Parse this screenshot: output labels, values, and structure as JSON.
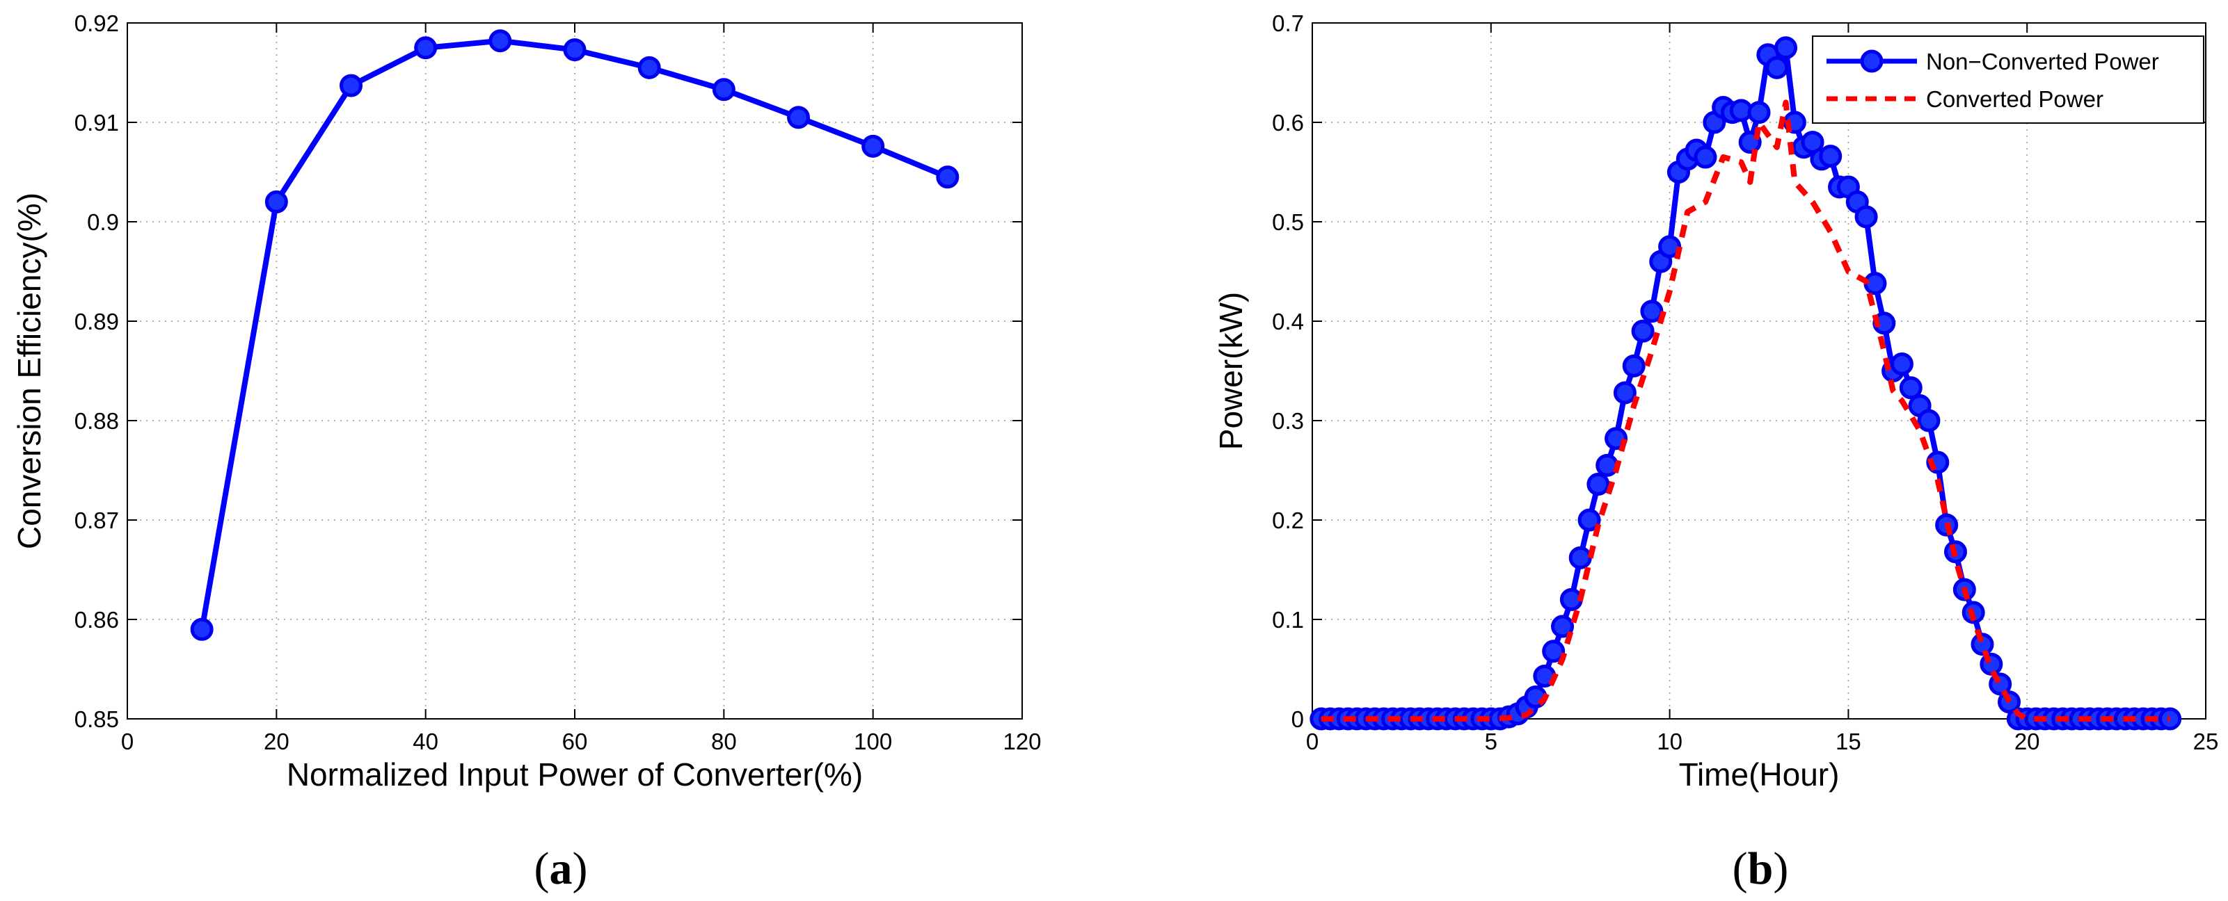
{
  "chart_data": [
    {
      "type": "line",
      "caption": {
        "open": "(",
        "letter": "a",
        "close": ")"
      },
      "xlabel": "Normalized Input Power of Converter(%)",
      "ylabel": "Conversion Efficiency(%)",
      "xlim": [
        0,
        120
      ],
      "ylim": [
        0.85,
        0.92
      ],
      "xticks": [
        0,
        20,
        40,
        60,
        80,
        100,
        120
      ],
      "yticks": [
        0.85,
        0.86,
        0.87,
        0.88,
        0.89,
        0.9,
        0.91,
        0.92
      ],
      "xtick_labels": [
        "0",
        "20",
        "40",
        "60",
        "80",
        "100",
        "120"
      ],
      "ytick_labels": [
        "0.85",
        "0.86",
        "0.87",
        "0.88",
        "0.89",
        "0.9",
        "0.91",
        "0.92"
      ],
      "grid": true,
      "series": [
        {
          "color": "#0000ff",
          "style": "solid",
          "marker": "circle",
          "x": [
            10,
            20,
            30,
            40,
            50,
            60,
            70,
            80,
            90,
            100,
            110
          ],
          "y": [
            0.859,
            0.902,
            0.9137,
            0.9175,
            0.9182,
            0.9173,
            0.9155,
            0.9133,
            0.9105,
            0.9076,
            0.9045
          ]
        }
      ]
    },
    {
      "type": "line",
      "caption": {
        "open": "(",
        "letter": "b",
        "close": ")"
      },
      "xlabel": "Time(Hour)",
      "ylabel": "Power(kW)",
      "xlim": [
        0,
        25
      ],
      "ylim": [
        0,
        0.7
      ],
      "xticks": [
        0,
        5,
        10,
        15,
        20,
        25
      ],
      "yticks": [
        0,
        0.1,
        0.2,
        0.3,
        0.4,
        0.5,
        0.6,
        0.7
      ],
      "xtick_labels": [
        "0",
        "5",
        "10",
        "15",
        "20",
        "25"
      ],
      "ytick_labels": [
        "0",
        "0.1",
        "0.2",
        "0.3",
        "0.4",
        "0.5",
        "0.6",
        "0.7"
      ],
      "grid": true,
      "legend_position": "top-right",
      "series": [
        {
          "name": "Non−Converted Power",
          "color": "#0000ff",
          "style": "solid",
          "marker": "circle",
          "x": [
            0.25,
            0.5,
            0.75,
            1,
            1.25,
            1.5,
            1.75,
            2,
            2.25,
            2.5,
            2.75,
            3,
            3.25,
            3.5,
            3.75,
            4,
            4.25,
            4.5,
            4.75,
            5,
            5.25,
            5.5,
            5.75,
            6,
            6.25,
            6.5,
            6.75,
            7,
            7.25,
            7.5,
            7.75,
            8,
            8.25,
            8.5,
            8.75,
            9,
            9.25,
            9.5,
            9.75,
            10,
            10.25,
            10.5,
            10.75,
            11,
            11.25,
            11.5,
            11.75,
            12,
            12.25,
            12.5,
            12.75,
            13,
            13.25,
            13.5,
            13.75,
            14,
            14.25,
            14.5,
            14.75,
            15,
            15.25,
            15.5,
            15.75,
            16,
            16.25,
            16.5,
            16.75,
            17,
            17.25,
            17.5,
            17.75,
            18,
            18.25,
            18.5,
            18.75,
            19,
            19.25,
            19.5,
            19.75,
            20,
            20.25,
            20.5,
            20.75,
            21,
            21.25,
            21.5,
            21.75,
            22,
            22.25,
            22.5,
            22.75,
            23,
            23.25,
            23.5,
            23.75,
            24
          ],
          "y": [
            0,
            0,
            0,
            0,
            0,
            0,
            0,
            0,
            0,
            0,
            0,
            0,
            0,
            0,
            0,
            0,
            0,
            0,
            0,
            0,
            0,
            0.002,
            0.005,
            0.012,
            0.022,
            0.043,
            0.068,
            0.093,
            0.12,
            0.162,
            0.2,
            0.236,
            0.255,
            0.282,
            0.328,
            0.355,
            0.39,
            0.41,
            0.46,
            0.475,
            0.55,
            0.563,
            0.572,
            0.565,
            0.6,
            0.615,
            0.61,
            0.612,
            0.58,
            0.61,
            0.668,
            0.655,
            0.675,
            0.6,
            0.575,
            0.58,
            0.563,
            0.566,
            0.535,
            0.535,
            0.52,
            0.505,
            0.438,
            0.398,
            0.35,
            0.357,
            0.333,
            0.315,
            0.3,
            0.258,
            0.195,
            0.168,
            0.13,
            0.107,
            0.075,
            0.055,
            0.035,
            0.017,
            0,
            0,
            0,
            0,
            0,
            0,
            0,
            0,
            0,
            0,
            0,
            0,
            0,
            0,
            0,
            0,
            0,
            0
          ]
        },
        {
          "name": "Converted Power",
          "color": "#ff0000",
          "style": "dashed",
          "marker": "none",
          "x": [
            0.25,
            1,
            2,
            3,
            4,
            5,
            5.5,
            6,
            6.5,
            7,
            7.5,
            8,
            8.5,
            9,
            9.5,
            10,
            10.5,
            11,
            11.5,
            12,
            12.25,
            12.5,
            13,
            13.25,
            13.5,
            14,
            14.5,
            15,
            15.5,
            16,
            16.25,
            16.5,
            17,
            17.5,
            18,
            18.5,
            19,
            19.5,
            19.75,
            20,
            21,
            22,
            23,
            24
          ],
          "y": [
            0,
            0,
            0,
            0,
            0,
            0,
            0.001,
            0.004,
            0.02,
            0.06,
            0.12,
            0.195,
            0.25,
            0.315,
            0.37,
            0.43,
            0.51,
            0.52,
            0.565,
            0.56,
            0.54,
            0.6,
            0.575,
            0.62,
            0.54,
            0.52,
            0.49,
            0.45,
            0.44,
            0.37,
            0.33,
            0.32,
            0.29,
            0.24,
            0.16,
            0.1,
            0.05,
            0.018,
            0.005,
            0,
            0,
            0,
            0,
            0
          ]
        }
      ]
    }
  ]
}
